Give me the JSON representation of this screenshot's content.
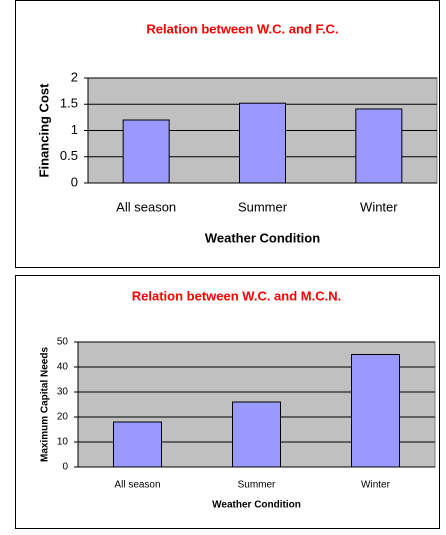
{
  "chart_data": [
    {
      "type": "bar",
      "title": "Relation between W.C. and F.C.",
      "x_label": "Weather Condition",
      "y_label": "Financing Cost",
      "categories": [
        "All season",
        "Summer",
        "Winter"
      ],
      "values": [
        1.2,
        1.52,
        1.41
      ],
      "color": "#9999ff",
      "ylim": [
        0,
        2
      ],
      "yticks": [
        0,
        0.5,
        1,
        1.5,
        2
      ],
      "grid": true
    },
    {
      "type": "bar",
      "title": "Relation between W.C. and M.C.N.",
      "x_label": "Weather Condition",
      "y_label": "Maximum Capital Needs",
      "categories": [
        "All season",
        "Summer",
        "Winter"
      ],
      "values": [
        18,
        26,
        45
      ],
      "color": "#9999ff",
      "ylim": [
        0,
        50
      ],
      "yticks": [
        0,
        10,
        20,
        30,
        40,
        50
      ],
      "grid": true
    }
  ]
}
